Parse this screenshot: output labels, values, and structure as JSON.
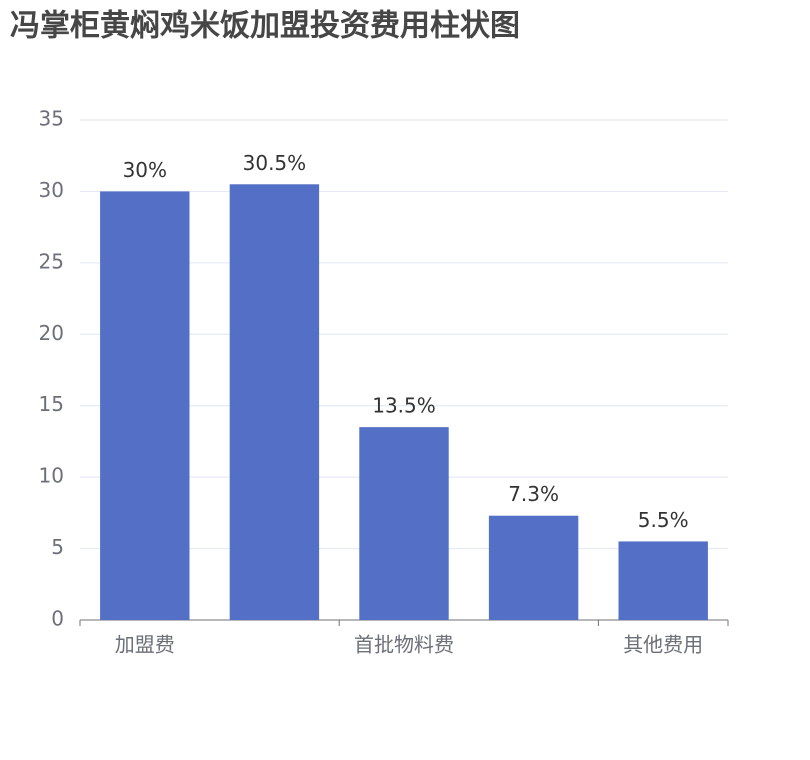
{
  "chart_data": {
    "type": "bar",
    "title": "冯掌柜黄焖鸡米饭加盟投资费用柱状图",
    "categories": [
      "加盟费",
      null,
      "首批物料费",
      null,
      "其他费用"
    ],
    "values": [
      30,
      30.5,
      13.5,
      7.3,
      5.5
    ],
    "value_labels": [
      "30%",
      "30.5%",
      "13.5%",
      "7.3%",
      "5.5%"
    ],
    "color": "#5470c6",
    "ylim": [
      0,
      35
    ],
    "yticks": [
      0,
      5,
      10,
      15,
      20,
      25,
      30,
      35
    ],
    "grid": true
  }
}
